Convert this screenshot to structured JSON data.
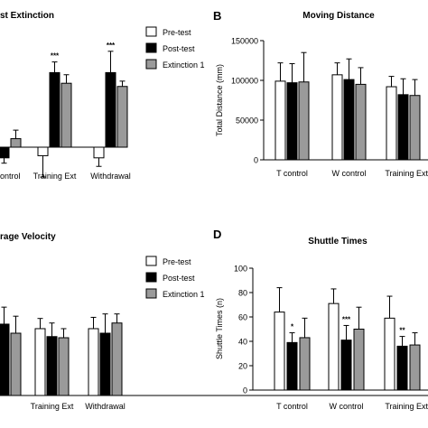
{
  "figure": {
    "legend_labels": [
      "Pre-test",
      "Post-test",
      "Extinction 1"
    ],
    "series_colors": [
      "#ffffff",
      "#000000",
      "#9a9a9a"
    ]
  },
  "chart_data": [
    {
      "type": "bar",
      "panel_letter": "",
      "title": "st Extinction",
      "categories": [
        "ontrol",
        "Training Ext",
        "Withdrawal"
      ],
      "series": [
        {
          "name": "Pre-test",
          "values": [
            -8,
            -8,
            -10
          ],
          "errors": [
            3,
            20,
            8
          ]
        },
        {
          "name": "Post-test",
          "values": [
            -10,
            70,
            70
          ],
          "errors": [
            5,
            10,
            20
          ]
        },
        {
          "name": "Extinction 1",
          "values": [
            8,
            60,
            57
          ],
          "errors": [
            8,
            8,
            5
          ]
        }
      ],
      "annotations": [
        {
          "category": "Training Ext",
          "series": "Post-test",
          "text": "***"
        },
        {
          "category": "Withdrawal",
          "series": "Post-test",
          "text": "***"
        }
      ],
      "ylim": [
        -25,
        100
      ],
      "legend": "top-right"
    },
    {
      "type": "bar",
      "panel_letter": "B",
      "title": "Moving Distance",
      "categories": [
        "T control",
        "W control",
        "Training Ext"
      ],
      "series": [
        {
          "name": "Pre-test",
          "values": [
            99000,
            107000,
            92000
          ],
          "errors": [
            23000,
            15000,
            13000
          ]
        },
        {
          "name": "Post-test",
          "values": [
            97000,
            101000,
            82000
          ],
          "errors": [
            24000,
            26000,
            20000
          ]
        },
        {
          "name": "Extinction 1",
          "values": [
            98000,
            95000,
            81000
          ],
          "errors": [
            37000,
            21000,
            20000
          ]
        }
      ],
      "ylabel": "Total Distance (mm)",
      "yticks": [
        0,
        50000,
        100000,
        150000
      ],
      "ylim": [
        0,
        150000
      ]
    },
    {
      "type": "bar",
      "panel_letter": "",
      "title": "rage Velocity",
      "categories": [
        "",
        "Training Ext",
        "Withdrawal"
      ],
      "series": [
        {
          "name": "Pre-test",
          "values": [
            0,
            59,
            59
          ],
          "errors": [
            0,
            9,
            10
          ]
        },
        {
          "name": "Post-test",
          "values": [
            63,
            52,
            55
          ],
          "errors": [
            15,
            12,
            17
          ]
        },
        {
          "name": "Extinction 1",
          "values": [
            55,
            51,
            64
          ],
          "errors": [
            15,
            8,
            8
          ]
        }
      ],
      "ylim": [
        0,
        110
      ],
      "legend": "top-right"
    },
    {
      "type": "bar",
      "panel_letter": "D",
      "title": "Shuttle Times",
      "categories": [
        "T control",
        "W control",
        "Training Ext"
      ],
      "series": [
        {
          "name": "Pre-test",
          "values": [
            64,
            71,
            59
          ],
          "errors": [
            20,
            12,
            18
          ]
        },
        {
          "name": "Post-test",
          "values": [
            39,
            41,
            36
          ],
          "errors": [
            8,
            12,
            8
          ]
        },
        {
          "name": "Extinction 1",
          "values": [
            43,
            50,
            37
          ],
          "errors": [
            16,
            18,
            10
          ]
        }
      ],
      "annotations": [
        {
          "category": "T control",
          "series": "Post-test",
          "text": "*"
        },
        {
          "category": "W control",
          "series": "Post-test",
          "text": "***"
        },
        {
          "category": "Training Ext",
          "series": "Post-test",
          "text": "**"
        }
      ],
      "ylabel": "Shuttle Times (n)",
      "yticks": [
        0,
        20,
        40,
        60,
        80,
        100
      ],
      "ylim": [
        0,
        100
      ]
    }
  ]
}
